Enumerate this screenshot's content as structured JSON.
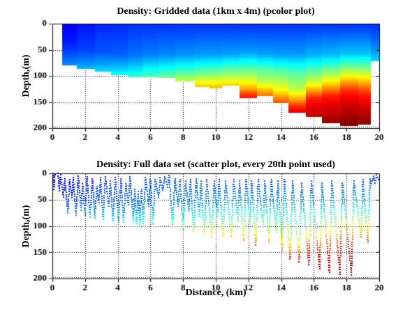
{
  "figure": {
    "background": "#ffffff",
    "axis_color": "#000000",
    "text_color": "#000000"
  },
  "chart_data": [
    {
      "type": "heatmap",
      "title": "Density: Gridded data (1km x 4m) (pcolor plot)",
      "xlabel": "",
      "ylabel": "Depth,(m)",
      "xlim": [
        0,
        20
      ],
      "ylim": [
        0,
        200
      ],
      "ydir": "reverse",
      "grid": true,
      "grid_style": "dotted",
      "colormap": "jet",
      "cell_width_km": 1,
      "cell_height_m": 4,
      "xticks": [
        0,
        2,
        4,
        6,
        8,
        10,
        12,
        14,
        16,
        18,
        20
      ],
      "yticks": [
        0,
        50,
        100,
        150,
        200
      ],
      "columns": [
        {
          "x0": 0.6,
          "x1": 1.5,
          "bottom": 80,
          "stops": [
            [
              0,
              0.12
            ],
            [
              35,
              0.15
            ],
            [
              62,
              0.21
            ],
            [
              80,
              0.27
            ]
          ]
        },
        {
          "x0": 1.5,
          "x1": 2.6,
          "bottom": 86,
          "stops": [
            [
              0,
              0.14
            ],
            [
              50,
              0.19
            ],
            [
              72,
              0.25
            ],
            [
              86,
              0.31
            ]
          ]
        },
        {
          "x0": 2.6,
          "x1": 3.6,
          "bottom": 92,
          "stops": [
            [
              0,
              0.16
            ],
            [
              55,
              0.21
            ],
            [
              80,
              0.29
            ],
            [
              92,
              0.35
            ]
          ]
        },
        {
          "x0": 3.6,
          "x1": 4.6,
          "bottom": 98,
          "stops": [
            [
              0,
              0.16
            ],
            [
              60,
              0.22
            ],
            [
              85,
              0.32
            ],
            [
              98,
              0.39
            ]
          ]
        },
        {
          "x0": 4.6,
          "x1": 5.5,
          "bottom": 103,
          "stops": [
            [
              0,
              0.17
            ],
            [
              62,
              0.24
            ],
            [
              90,
              0.36
            ],
            [
              103,
              0.43
            ]
          ]
        },
        {
          "x0": 5.5,
          "x1": 6.5,
          "bottom": 103,
          "stops": [
            [
              0,
              0.17
            ],
            [
              60,
              0.25
            ],
            [
              88,
              0.38
            ],
            [
              103,
              0.46
            ]
          ]
        },
        {
          "x0": 6.5,
          "x1": 7.5,
          "bottom": 104,
          "stops": [
            [
              0,
              0.17
            ],
            [
              60,
              0.26
            ],
            [
              85,
              0.38
            ],
            [
              98,
              0.46
            ],
            [
              104,
              0.5
            ]
          ]
        },
        {
          "x0": 7.5,
          "x1": 8.7,
          "bottom": 110,
          "stops": [
            [
              0,
              0.17
            ],
            [
              60,
              0.27
            ],
            [
              85,
              0.4
            ],
            [
              100,
              0.5
            ],
            [
              110,
              0.57
            ]
          ]
        },
        {
          "x0": 8.7,
          "x1": 9.6,
          "bottom": 121,
          "stops": [
            [
              0,
              0.17
            ],
            [
              60,
              0.28
            ],
            [
              82,
              0.4
            ],
            [
              100,
              0.52
            ],
            [
              112,
              0.62
            ],
            [
              121,
              0.68
            ]
          ]
        },
        {
          "x0": 9.6,
          "x1": 10.4,
          "bottom": 124,
          "stops": [
            [
              0,
              0.17
            ],
            [
              60,
              0.28
            ],
            [
              84,
              0.42
            ],
            [
              102,
              0.54
            ],
            [
              114,
              0.63
            ],
            [
              124,
              0.7
            ]
          ]
        },
        {
          "x0": 10.4,
          "x1": 11.45,
          "bottom": 119,
          "stops": [
            [
              0,
              0.17
            ],
            [
              58,
              0.28
            ],
            [
              84,
              0.44
            ],
            [
              102,
              0.55
            ],
            [
              112,
              0.63
            ],
            [
              119,
              0.68
            ]
          ]
        },
        {
          "x0": 11.45,
          "x1": 12.5,
          "bottom": 143,
          "stops": [
            [
              0,
              0.17
            ],
            [
              55,
              0.28
            ],
            [
              85,
              0.45
            ],
            [
              105,
              0.57
            ],
            [
              118,
              0.66
            ],
            [
              126,
              0.72
            ],
            [
              133,
              0.8
            ],
            [
              143,
              0.87
            ]
          ]
        },
        {
          "x0": 12.5,
          "x1": 13.5,
          "bottom": 138,
          "stops": [
            [
              0,
              0.17
            ],
            [
              58,
              0.28
            ],
            [
              88,
              0.46
            ],
            [
              112,
              0.56
            ],
            [
              122,
              0.64
            ],
            [
              130,
              0.71
            ],
            [
              138,
              0.77
            ]
          ]
        },
        {
          "x0": 13.5,
          "x1": 14.45,
          "bottom": 152,
          "stops": [
            [
              0,
              0.17
            ],
            [
              60,
              0.28
            ],
            [
              95,
              0.48
            ],
            [
              118,
              0.58
            ],
            [
              132,
              0.66
            ],
            [
              142,
              0.74
            ],
            [
              152,
              0.8
            ]
          ]
        },
        {
          "x0": 14.45,
          "x1": 15.5,
          "bottom": 171,
          "stops": [
            [
              0,
              0.17
            ],
            [
              60,
              0.28
            ],
            [
              95,
              0.46
            ],
            [
              126,
              0.56
            ],
            [
              138,
              0.66
            ],
            [
              148,
              0.74
            ],
            [
              158,
              0.83
            ],
            [
              171,
              0.9
            ]
          ]
        },
        {
          "x0": 15.5,
          "x1": 16.5,
          "bottom": 179,
          "stops": [
            [
              0,
              0.17
            ],
            [
              60,
              0.3
            ],
            [
              90,
              0.46
            ],
            [
              112,
              0.58
            ],
            [
              124,
              0.68
            ],
            [
              133,
              0.76
            ],
            [
              142,
              0.84
            ],
            [
              160,
              0.9
            ],
            [
              179,
              0.94
            ]
          ]
        },
        {
          "x0": 16.5,
          "x1": 17.6,
          "bottom": 190,
          "stops": [
            [
              0,
              0.17
            ],
            [
              60,
              0.31
            ],
            [
              88,
              0.48
            ],
            [
              106,
              0.6
            ],
            [
              117,
              0.68
            ],
            [
              127,
              0.76
            ],
            [
              137,
              0.84
            ],
            [
              155,
              0.9
            ],
            [
              175,
              0.94
            ],
            [
              190,
              0.98
            ]
          ]
        },
        {
          "x0": 17.6,
          "x1": 18.7,
          "bottom": 196,
          "stops": [
            [
              0,
              0.17
            ],
            [
              58,
              0.32
            ],
            [
              85,
              0.5
            ],
            [
              100,
              0.62
            ],
            [
              110,
              0.7
            ],
            [
              120,
              0.78
            ],
            [
              132,
              0.85
            ],
            [
              150,
              0.91
            ],
            [
              175,
              0.96
            ],
            [
              196,
              1
            ]
          ]
        },
        {
          "x0": 18.7,
          "x1": 19.5,
          "bottom": 193,
          "stops": [
            [
              0,
              0.17
            ],
            [
              58,
              0.32
            ],
            [
              86,
              0.5
            ],
            [
              102,
              0.62
            ],
            [
              113,
              0.7
            ],
            [
              124,
              0.78
            ],
            [
              137,
              0.85
            ],
            [
              158,
              0.91
            ],
            [
              180,
              0.96
            ],
            [
              193,
              1
            ]
          ]
        },
        {
          "x0": 19.5,
          "x1": 20.0,
          "bottom": 72,
          "stops": [
            [
              0,
              0.17
            ],
            [
              40,
              0.24
            ],
            [
              60,
              0.3
            ],
            [
              72,
              0.34
            ]
          ]
        }
      ]
    },
    {
      "type": "scatter",
      "title": "Density: Full data set (scatter plot, every 20th point used)",
      "xlabel": "Distance, (km)",
      "ylabel": "Depth,(m)",
      "xlim": [
        0,
        20
      ],
      "ylim": [
        0,
        200
      ],
      "ydir": "reverse",
      "grid": true,
      "grid_style": "dotted",
      "colormap": "jet",
      "marker_px": 2,
      "xticks": [
        0,
        2,
        4,
        6,
        8,
        10,
        12,
        14,
        16,
        18,
        20
      ],
      "yticks": [
        0,
        50,
        100,
        150,
        200
      ],
      "track": [
        [
          0.06,
          0
        ],
        [
          0.1,
          30
        ],
        [
          0.15,
          2
        ],
        [
          0.35,
          0
        ],
        [
          0.42,
          33
        ],
        [
          0.5,
          3
        ],
        [
          0.68,
          45
        ],
        [
          0.76,
          10
        ],
        [
          0.95,
          76
        ],
        [
          1.05,
          12
        ],
        [
          1.2,
          46
        ],
        [
          1.28,
          8
        ],
        [
          1.45,
          80
        ],
        [
          1.58,
          5
        ],
        [
          1.75,
          70
        ],
        [
          1.85,
          20
        ],
        [
          2.0,
          80
        ],
        [
          2.12,
          6
        ],
        [
          2.3,
          83
        ],
        [
          2.45,
          10
        ],
        [
          2.6,
          85
        ],
        [
          2.72,
          25
        ],
        [
          2.85,
          55
        ],
        [
          2.95,
          8
        ],
        [
          3.1,
          87
        ],
        [
          3.25,
          6
        ],
        [
          3.45,
          62
        ],
        [
          3.55,
          15
        ],
        [
          3.7,
          90
        ],
        [
          3.85,
          8
        ],
        [
          4.05,
          92
        ],
        [
          4.2,
          10
        ],
        [
          4.35,
          93
        ],
        [
          4.5,
          20
        ],
        [
          4.65,
          60
        ],
        [
          4.75,
          6
        ],
        [
          4.95,
          90
        ],
        [
          5.05,
          30
        ],
        [
          5.15,
          96
        ],
        [
          5.25,
          35
        ],
        [
          5.35,
          97
        ],
        [
          5.45,
          30
        ],
        [
          5.55,
          100
        ],
        [
          5.7,
          8
        ],
        [
          5.9,
          62
        ],
        [
          6.0,
          10
        ],
        [
          6.15,
          97
        ],
        [
          6.3,
          12
        ],
        [
          6.5,
          46
        ],
        [
          6.6,
          8
        ],
        [
          6.75,
          32
        ],
        [
          6.9,
          6
        ],
        [
          7.05,
          26
        ],
        [
          7.15,
          4
        ],
        [
          7.35,
          101
        ],
        [
          7.5,
          10
        ],
        [
          7.7,
          62
        ],
        [
          7.8,
          12
        ],
        [
          8.0,
          107
        ],
        [
          8.15,
          15
        ],
        [
          8.35,
          72
        ],
        [
          8.45,
          12
        ],
        [
          8.65,
          111
        ],
        [
          8.8,
          10
        ],
        [
          9.0,
          82
        ],
        [
          9.1,
          15
        ],
        [
          9.3,
          116
        ],
        [
          9.45,
          12
        ],
        [
          9.75,
          120
        ],
        [
          9.9,
          15
        ],
        [
          10.1,
          82
        ],
        [
          10.2,
          12
        ],
        [
          10.45,
          118
        ],
        [
          10.6,
          15
        ],
        [
          10.95,
          119
        ],
        [
          11.1,
          12
        ],
        [
          11.35,
          92
        ],
        [
          11.45,
          15
        ],
        [
          11.7,
          127
        ],
        [
          11.85,
          12
        ],
        [
          12.1,
          96
        ],
        [
          12.2,
          15
        ],
        [
          12.45,
          136
        ],
        [
          12.6,
          12
        ],
        [
          12.9,
          102
        ],
        [
          13.0,
          15
        ],
        [
          13.25,
          131
        ],
        [
          13.4,
          12
        ],
        [
          13.7,
          112
        ],
        [
          13.8,
          15
        ],
        [
          14.05,
          146
        ],
        [
          14.2,
          12
        ],
        [
          14.55,
          163
        ],
        [
          14.7,
          15
        ],
        [
          15.1,
          168
        ],
        [
          15.25,
          18
        ],
        [
          15.7,
          174
        ],
        [
          15.85,
          15
        ],
        [
          16.35,
          182
        ],
        [
          16.5,
          18
        ],
        [
          16.95,
          188
        ],
        [
          17.1,
          15
        ],
        [
          17.6,
          192
        ],
        [
          17.75,
          18
        ],
        [
          18.3,
          193
        ],
        [
          18.45,
          15
        ],
        [
          18.9,
          121
        ],
        [
          19.0,
          12
        ],
        [
          19.3,
          131
        ],
        [
          19.45,
          10
        ],
        [
          19.55,
          20
        ],
        [
          19.65,
          5
        ],
        [
          19.75,
          18
        ],
        [
          19.85,
          3
        ],
        [
          19.95,
          12
        ]
      ]
    }
  ]
}
